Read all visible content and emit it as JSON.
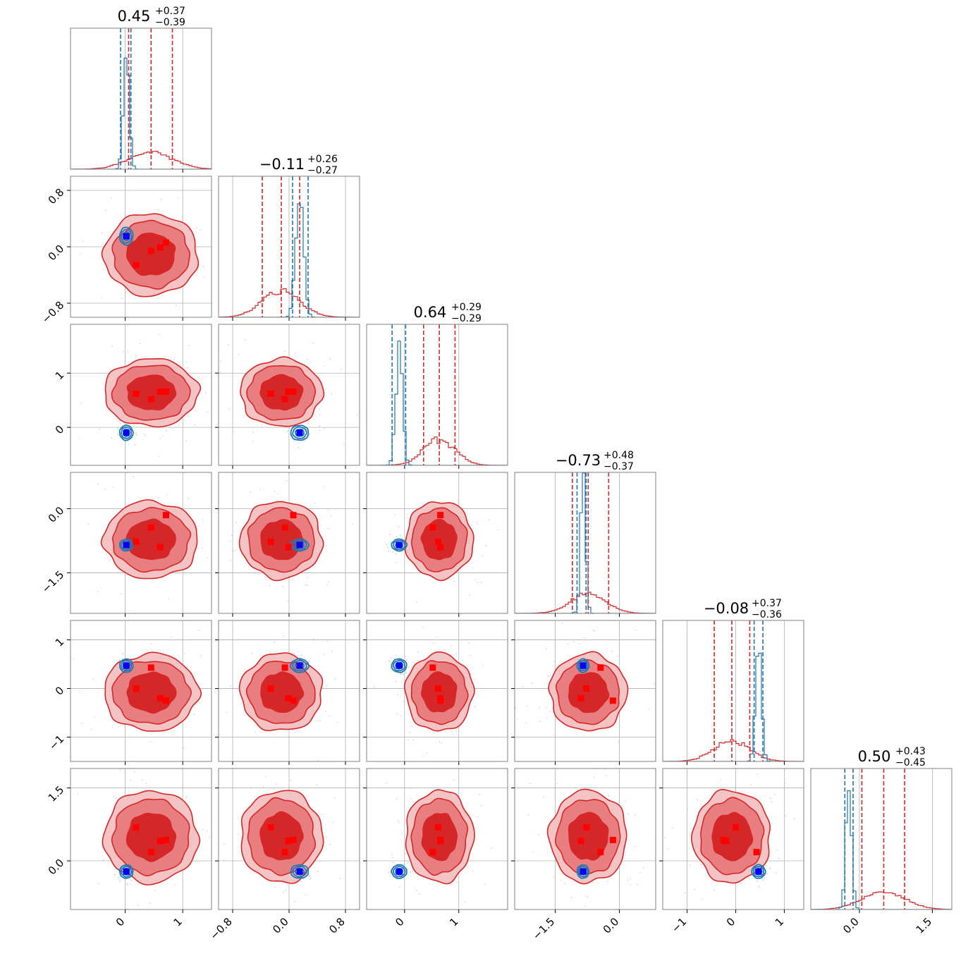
{
  "chart_data": {
    "type": "corner",
    "n_params": 6,
    "colors": {
      "red": "#d62728",
      "red_mid": "#e87e80",
      "red_light": "#f4c4c5",
      "blue": "#1f77b4",
      "blue_marker": "#0000ff",
      "red_marker": "#ff0000",
      "grid": "#b0b0b0"
    },
    "titles": [
      {
        "value": "0.45",
        "plus": "+0.37",
        "minus": "−0.39"
      },
      {
        "value": "−0.11",
        "plus": "+0.26",
        "minus": "−0.27"
      },
      {
        "value": "0.64",
        "plus": "+0.29",
        "minus": "−0.29"
      },
      {
        "value": "−0.73",
        "plus": "+0.48",
        "minus": "−0.37"
      },
      {
        "value": "−0.08",
        "plus": "+0.37",
        "minus": "−0.36"
      },
      {
        "value": "0.50",
        "plus": "+0.43",
        "minus": "−0.45"
      }
    ],
    "ranges": [
      [
        -0.95,
        1.5
      ],
      [
        -1.0,
        1.0
      ],
      [
        -0.7,
        1.9
      ],
      [
        -2.45,
        0.85
      ],
      [
        -1.5,
        1.4
      ],
      [
        -1.0,
        1.9
      ]
    ],
    "ticks": [
      {
        "values": [
          0,
          1
        ],
        "labels": [
          "0",
          "1"
        ]
      },
      {
        "values": [
          -0.8,
          0.0,
          0.8
        ],
        "labels": [
          "−0.8",
          "0.0",
          "0.8"
        ]
      },
      {
        "values": [
          0,
          1
        ],
        "labels": [
          "0",
          "1"
        ]
      },
      {
        "values": [
          -1.5,
          0.0
        ],
        "labels": [
          "−1.5",
          "0.0"
        ]
      },
      {
        "values": [
          -1,
          0,
          1
        ],
        "labels": [
          "−1",
          "0",
          "1"
        ]
      },
      {
        "values": [
          0.0,
          1.5
        ],
        "labels": [
          "0.0",
          "1.5"
        ]
      }
    ],
    "red_posterior": {
      "center": [
        0.45,
        -0.11,
        0.64,
        -0.73,
        -0.08,
        0.5
      ],
      "sigma": [
        0.38,
        0.27,
        0.29,
        0.42,
        0.37,
        0.44
      ],
      "quantile_lines": [
        [
          0.06,
          0.82
        ],
        [
          -0.38,
          0.15
        ],
        [
          0.35,
          0.93
        ],
        [
          -1.1,
          -0.25
        ],
        [
          -0.44,
          0.29
        ],
        [
          0.05,
          0.93
        ]
      ]
    },
    "blue_posterior": {
      "center": [
        0.02,
        0.15,
        -0.1,
        -0.85,
        0.47,
        -0.22
      ],
      "sigma": [
        0.05,
        0.055,
        0.06,
        0.06,
        0.06,
        0.06
      ],
      "quantile_lines": [
        [
          -0.08,
          0.1
        ],
        [
          0.05,
          0.27
        ],
        [
          -0.23,
          0.02
        ],
        [
          -0.99,
          -0.78
        ],
        [
          0.38,
          0.56
        ],
        [
          -0.3,
          -0.13
        ]
      ]
    },
    "red_markers": [
      [
        0.19,
        -0.26,
        0.62,
        -0.77,
        0.0,
        0.69
      ],
      [
        0.45,
        -0.06,
        0.52,
        -0.44,
        0.43,
        0.18
      ],
      [
        0.61,
        -0.01,
        0.66,
        -0.9,
        -0.2,
        0.41
      ],
      [
        0.71,
        0.06,
        0.66,
        -0.15,
        -0.25,
        0.43
      ]
    ],
    "blue_marker": [
      0.02,
      0.15,
      -0.1,
      -0.85,
      0.47,
      -0.22
    ]
  }
}
